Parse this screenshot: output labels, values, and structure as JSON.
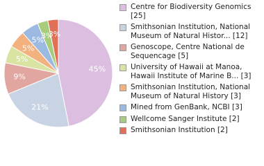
{
  "chart_data": {
    "type": "pie",
    "categories": [
      "Centre for Biodiversity Genomics [25]",
      "Smithsonian Institution, National Museum of Natural Histor... [12]",
      "Genoscope, Centre National de Sequencage [5]",
      "University of Hawaii at Manoa, Hawaii Institute of Marine B... [3]",
      "Smithsonian Institution, National Museum of Natural History [3]",
      "Mined from GenBank, NCBI [3]",
      "Wellcome Sanger Institute [2]",
      "Smithsonian Institution [2]"
    ],
    "values": [
      45,
      21,
      9,
      5,
      5,
      5,
      3,
      3
    ],
    "value_labels": [
      "45%",
      "21%",
      "9%",
      "5%",
      "5%",
      "5%",
      "3%",
      "3%"
    ],
    "colors": [
      "#dcbfe0",
      "#c8d4e4",
      "#e0a69f",
      "#d9e4a2",
      "#f2b17f",
      "#9cb9e2",
      "#a7cd7c",
      "#e07058"
    ],
    "legend": "right"
  }
}
